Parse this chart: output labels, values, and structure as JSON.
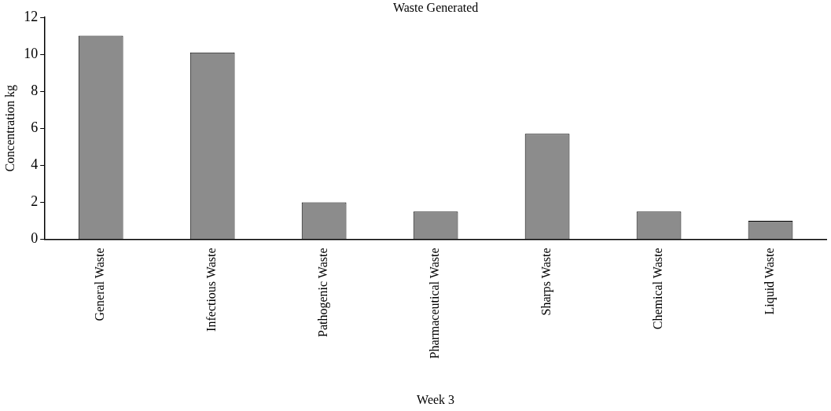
{
  "chart_data": {
    "type": "bar",
    "title": "Waste Generated",
    "xlabel": "Week 3",
    "ylabel": "Concentration kg",
    "categories": [
      "General Waste",
      "Infectious Waste",
      "Pathogenic Waste",
      "Pharmaceutical Waste",
      "Sharps Waste",
      "Chemical Waste",
      "Liquid Waste"
    ],
    "values": [
      11,
      10.1,
      2,
      1.5,
      5.7,
      1.5,
      1
    ],
    "color": "#8c8c8c",
    "ylim": [
      0,
      12
    ],
    "yticks": [
      0,
      2,
      4,
      6,
      8,
      10,
      12
    ],
    "grid": false,
    "legend": false
  }
}
